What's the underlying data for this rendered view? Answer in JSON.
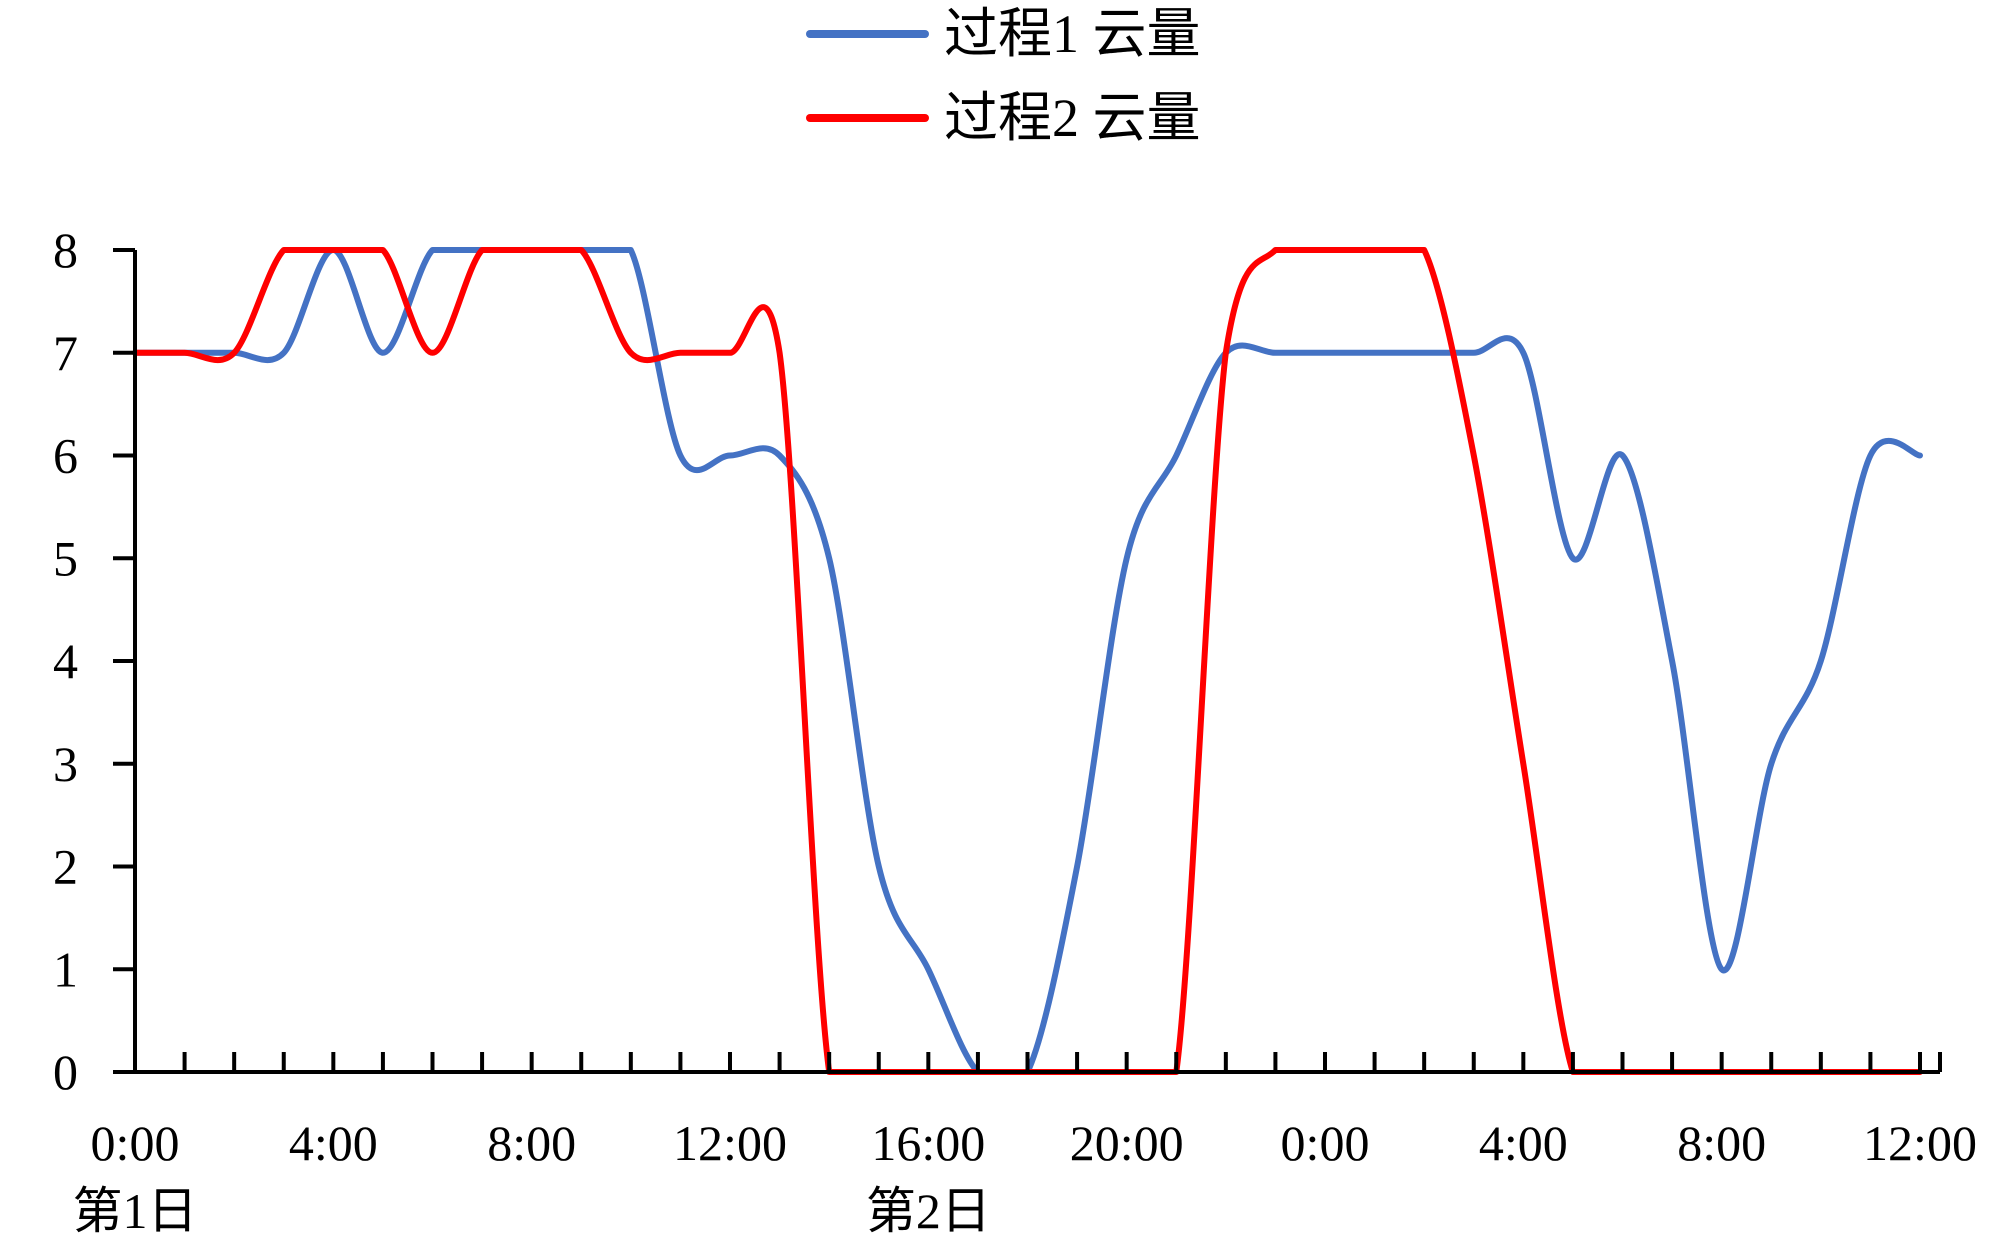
{
  "chart_data": {
    "type": "line",
    "title": "",
    "xlabel": "",
    "ylabel": "",
    "ylim": [
      0,
      8
    ],
    "xlim_hours": [
      0,
      36
    ],
    "grid": false,
    "legend_position": "top-center",
    "x_tick_labels": [
      "0:00",
      "4:00",
      "8:00",
      "12:00",
      "16:00",
      "20:00",
      "0:00",
      "4:00",
      "8:00",
      "12:00"
    ],
    "y_tick_labels": [
      "0",
      "1",
      "2",
      "3",
      "4",
      "5",
      "6",
      "7",
      "8"
    ],
    "day_labels": [
      {
        "text": "第1日",
        "at_tick": 0
      },
      {
        "text": "第2日",
        "at_tick": 4
      }
    ],
    "x_hours": [
      0,
      1,
      2,
      3,
      4,
      5,
      6,
      7,
      8,
      9,
      10,
      11,
      12,
      13,
      14,
      15,
      16,
      17,
      18,
      19,
      20,
      21,
      22,
      23,
      24,
      25,
      26,
      27,
      28,
      29,
      30,
      31,
      32,
      33,
      34,
      35,
      36
    ],
    "series": [
      {
        "name": "过程1 云量",
        "color": "#4472c4",
        "values": [
          7,
          7,
          7,
          7,
          8,
          7,
          8,
          8,
          8,
          8,
          8,
          6,
          6,
          6,
          5,
          2,
          1,
          0,
          0,
          2,
          5,
          6,
          7,
          7,
          7,
          7,
          7,
          7,
          7,
          5,
          6,
          4,
          1,
          3,
          4,
          6,
          6
        ]
      },
      {
        "name": "过程2 云量",
        "color": "#ff0000",
        "values": [
          7,
          7,
          7,
          8,
          8,
          8,
          7,
          8,
          8,
          8,
          7,
          7,
          7,
          7,
          0,
          0,
          0,
          0,
          0,
          0,
          0,
          0,
          7,
          8,
          8,
          8,
          8,
          6,
          3,
          0,
          0,
          0,
          0,
          0,
          0,
          0,
          0
        ]
      }
    ]
  }
}
